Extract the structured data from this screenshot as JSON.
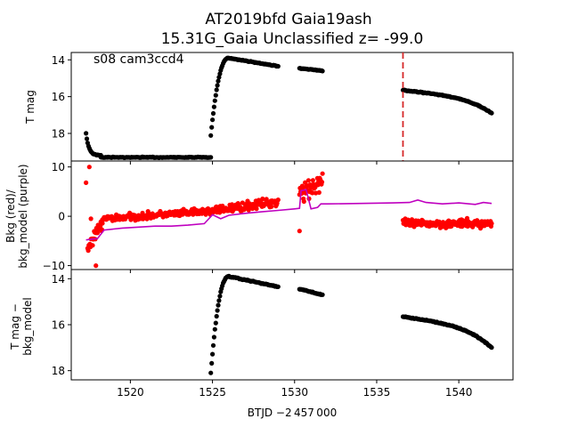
{
  "chart_data": [
    {
      "type": "scatter",
      "title": "AT2019bfd  Gaia19ash",
      "subtitle": "15.31G_Gaia Unclassified z= -99.0",
      "annotation": "s08 cam3ccd4",
      "xlabel": "",
      "ylabel": "T mag",
      "xlim": [
        1516.4,
        1543.3
      ],
      "ylim": [
        19.5,
        13.6
      ],
      "y_inverted": true,
      "yticks": [
        "14",
        "16",
        "18"
      ],
      "vline": {
        "x": 1536.6,
        "color": "#d62728",
        "style": "dashed"
      },
      "series": [
        {
          "color": "#000000",
          "segments": [
            {
              "x_start": 1517.3,
              "x_end": 1518.2,
              "shape": "decay",
              "y_start": 18.0,
              "y_end": 19.2
            },
            {
              "x_start": 1518.2,
              "x_end": 1524.9,
              "shape": "flat",
              "y_start": 19.3,
              "y_end": 19.3
            },
            {
              "x_start": 1524.9,
              "x_end": 1526.0,
              "shape": "rise",
              "y_start": 18.1,
              "y_end": 13.9
            },
            {
              "x_start": 1526.0,
              "x_end": 1529.0,
              "shape": "linear",
              "y_start": 13.9,
              "y_end": 14.35
            },
            {
              "x_start": 1530.3,
              "x_end": 1531.7,
              "shape": "linear",
              "y_start": 14.45,
              "y_end": 14.6
            },
            {
              "x_start": 1536.6,
              "x_end": 1542.0,
              "shape": "curve",
              "y_start": 15.65,
              "y_end": 16.9
            }
          ]
        }
      ]
    },
    {
      "type": "line",
      "title": "",
      "xlabel": "",
      "ylabel": "Bkg (red)/\nbkg_model (purple)",
      "xlim": [
        1516.4,
        1543.3
      ],
      "ylim": [
        -10.8,
        11.2
      ],
      "yticks": [
        "10",
        "0",
        "−10"
      ],
      "series": [
        {
          "color": "#ff0000",
          "kind": "scatter",
          "segments": [
            {
              "x_start": 1517.4,
              "x_end": 1518.3,
              "y_start": -6.5,
              "y_end": -1.5,
              "scatter": 2.0
            },
            {
              "x_start": 1518.3,
              "x_end": 1524.9,
              "y_start": -0.5,
              "y_end": 1.0,
              "scatter": 1.0
            },
            {
              "x_start": 1524.9,
              "x_end": 1529.0,
              "y_start": 1.0,
              "y_end": 3.0,
              "scatter": 1.3
            },
            {
              "x_start": 1530.3,
              "x_end": 1531.7,
              "y_start": 5.0,
              "y_end": 7.0,
              "scatter": 3.5
            },
            {
              "x_start": 1536.6,
              "x_end": 1542.0,
              "y_start": -1.5,
              "y_end": -1.5,
              "scatter": 1.2
            }
          ],
          "outliers": [
            {
              "x": 1517.3,
              "y": 6.8
            },
            {
              "x": 1517.5,
              "y": 10.0
            },
            {
              "x": 1517.6,
              "y": -0.5
            },
            {
              "x": 1517.9,
              "y": -10.0
            },
            {
              "x": 1530.3,
              "y": -3.0
            }
          ]
        },
        {
          "color": "#bf00bf",
          "kind": "line",
          "points": [
            [
              1517.3,
              -4.8
            ],
            [
              1518.0,
              -4.5
            ],
            [
              1518.4,
              -2.8
            ],
            [
              1519.5,
              -2.4
            ],
            [
              1520.5,
              -2.2
            ],
            [
              1521.5,
              -2.0
            ],
            [
              1522.5,
              -2.0
            ],
            [
              1523.5,
              -1.8
            ],
            [
              1524.5,
              -1.5
            ],
            [
              1525.0,
              0.3
            ],
            [
              1525.5,
              -0.5
            ],
            [
              1526.0,
              0.2
            ],
            [
              1527.0,
              0.6
            ],
            [
              1528.0,
              0.9
            ],
            [
              1529.0,
              1.2
            ],
            [
              1530.0,
              1.5
            ],
            [
              1530.3,
              1.6
            ],
            [
              1530.4,
              5.2
            ],
            [
              1530.7,
              5.4
            ],
            [
              1531.0,
              1.5
            ],
            [
              1531.4,
              1.8
            ],
            [
              1531.6,
              2.5
            ],
            [
              1532.0,
              2.5
            ],
            [
              1534.0,
              2.6
            ],
            [
              1536.0,
              2.7
            ],
            [
              1537.0,
              2.8
            ],
            [
              1537.5,
              3.3
            ],
            [
              1538.0,
              2.8
            ],
            [
              1539.0,
              2.5
            ],
            [
              1540.0,
              2.7
            ],
            [
              1541.0,
              2.4
            ],
            [
              1541.5,
              2.8
            ],
            [
              1542.0,
              2.6
            ]
          ]
        }
      ]
    },
    {
      "type": "scatter",
      "title": "",
      "xlabel": "BTJD −2 457 000",
      "ylabel": "T mag −\nbkg_model",
      "xlim": [
        1516.4,
        1543.3
      ],
      "ylim": [
        18.4,
        13.6
      ],
      "y_inverted": true,
      "yticks": [
        "14",
        "16",
        "18"
      ],
      "xticks": [
        "1520",
        "1525",
        "1530",
        "1535",
        "1540"
      ],
      "series": [
        {
          "color": "#000000",
          "segments": [
            {
              "x_start": 1524.9,
              "x_end": 1526.0,
              "shape": "rise",
              "y_start": 18.1,
              "y_end": 13.9
            },
            {
              "x_start": 1526.0,
              "x_end": 1529.0,
              "shape": "linear",
              "y_start": 13.9,
              "y_end": 14.35
            },
            {
              "x_start": 1530.3,
              "x_end": 1531.7,
              "shape": "linear",
              "y_start": 14.45,
              "y_end": 14.7
            },
            {
              "x_start": 1536.6,
              "x_end": 1542.0,
              "shape": "curve",
              "y_start": 15.65,
              "y_end": 17.0
            }
          ]
        }
      ]
    }
  ]
}
